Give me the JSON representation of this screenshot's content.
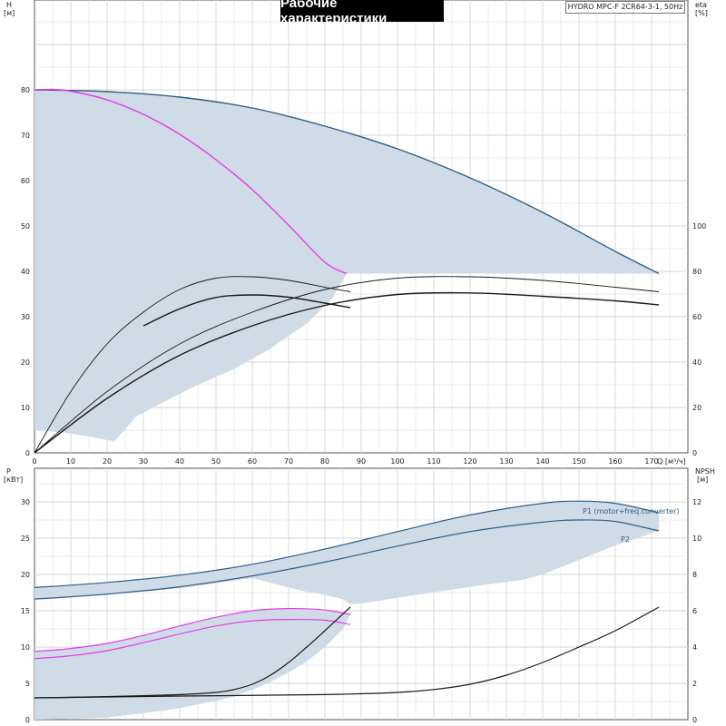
{
  "header": {
    "title": "Рабочие характеристики",
    "model": "HYDRO MPC-F 2CR64-3-1, 50Hz"
  },
  "colors": {
    "band_fill": "#cfdbe6",
    "curve_blue": "#2e5f8a",
    "curve_magenta": "#e63ce6",
    "curve_black": "#1a1a1a",
    "grid": "#d6d6d6"
  },
  "chart_data": [
    {
      "type": "line",
      "panel": "top",
      "y_left_label": "H",
      "y_left_unit": "[м]",
      "y_right_label": "eta",
      "y_right_unit": "[%]",
      "x_label": "Q [м³/ч]",
      "x_ticks": [
        0,
        10,
        20,
        30,
        40,
        50,
        60,
        70,
        80,
        90,
        100,
        110,
        120,
        130,
        140,
        150,
        160,
        170
      ],
      "y_left_ticks": [
        0,
        10,
        20,
        30,
        40,
        50,
        60,
        70,
        80
      ],
      "y_right_ticks": [
        0,
        20,
        40,
        60,
        80,
        100
      ],
      "xlim": [
        0,
        180
      ],
      "ylim": [
        0,
        90
      ],
      "eta_ylim": [
        0,
        180
      ],
      "series": [
        {
          "role": "h-max",
          "color": "blue",
          "axis": "left",
          "x": [
            0,
            20,
            40,
            60,
            80,
            100,
            120,
            140,
            160,
            172
          ],
          "y": [
            80,
            79.6,
            78.4,
            76.0,
            72.0,
            67.0,
            60.6,
            53.0,
            44.4,
            39.5
          ]
        },
        {
          "role": "h-single",
          "color": "magenta",
          "axis": "left",
          "x": [
            0,
            5,
            10,
            20,
            30,
            40,
            50,
            60,
            70,
            80,
            86
          ],
          "y": [
            80,
            80.1,
            79.7,
            77.8,
            74.6,
            70.2,
            64.6,
            58.0,
            50.2,
            42.0,
            39.5
          ]
        },
        {
          "role": "eta-one-pump-1",
          "color": "black",
          "axis": "right",
          "thin": true,
          "x": [
            0,
            10,
            20,
            30,
            40,
            50,
            60,
            70,
            80,
            87
          ],
          "y": [
            0,
            27,
            48,
            62,
            72,
            77,
            77.6,
            76,
            73,
            71
          ]
        },
        {
          "role": "eta-one-pump-2",
          "color": "black",
          "axis": "right",
          "x": [
            30,
            40,
            50,
            60,
            70,
            80,
            87
          ],
          "y": [
            56,
            63.5,
            68.5,
            69.6,
            68.6,
            66,
            64
          ]
        },
        {
          "role": "eta-two-pumps-1",
          "color": "black",
          "axis": "right",
          "thin": true,
          "x": [
            0,
            20,
            40,
            60,
            80,
            100,
            120,
            140,
            160,
            172
          ],
          "y": [
            0,
            27,
            48,
            62,
            72,
            77,
            77.6,
            76,
            73,
            71
          ]
        },
        {
          "role": "eta-two-pumps-2",
          "color": "black",
          "axis": "right",
          "x": [
            0,
            20,
            40,
            60,
            80,
            100,
            120,
            140,
            160,
            172
          ],
          "y": [
            0,
            24,
            43,
            56,
            65,
            69.8,
            70.5,
            69,
            67,
            65.2
          ]
        }
      ],
      "band": {
        "upper_x": [
          0,
          20,
          40,
          60,
          80,
          100,
          120,
          140,
          160,
          172
        ],
        "upper_y": [
          80,
          79.6,
          78.4,
          76.0,
          72.0,
          67.0,
          60.6,
          53.0,
          44.4,
          39.5
        ],
        "lower_x": [
          172,
          150,
          120,
          90,
          86,
          82,
          75,
          65,
          55,
          45,
          35,
          28,
          22,
          15,
          8,
          0
        ],
        "lower_y": [
          39.5,
          39.5,
          39.5,
          39.5,
          39.5,
          34,
          28.5,
          23,
          18.5,
          15,
          11,
          8,
          2.5,
          3.6,
          4.5,
          5
        ]
      }
    },
    {
      "type": "line",
      "panel": "bottom",
      "y_left_label": "P",
      "y_left_unit": "[кВт]",
      "y_right_label": "NPSH",
      "y_right_unit": "[м]",
      "y_left_ticks": [
        0,
        5,
        10,
        15,
        20,
        25,
        30
      ],
      "y_right_ticks": [
        0,
        2,
        4,
        6,
        8,
        10,
        12
      ],
      "xlim": [
        0,
        180
      ],
      "ylim": [
        0,
        32.5
      ],
      "npsh_ylim": [
        0,
        13
      ],
      "series": [
        {
          "name": "P1 (motor+freq.converter)",
          "color": "blue",
          "axis": "left",
          "x": [
            0,
            20,
            40,
            60,
            80,
            100,
            120,
            140,
            150,
            160,
            172
          ],
          "y": [
            18.2,
            18.9,
            19.9,
            21.4,
            23.5,
            25.9,
            28.2,
            29.8,
            30.1,
            29.8,
            28.5
          ]
        },
        {
          "name": "P2",
          "color": "blue",
          "axis": "left",
          "x": [
            0,
            20,
            40,
            60,
            80,
            100,
            120,
            140,
            150,
            160,
            172
          ],
          "y": [
            16.6,
            17.3,
            18.3,
            19.8,
            21.7,
            23.9,
            25.9,
            27.2,
            27.5,
            27.3,
            26.0
          ]
        },
        {
          "role": "p1-single",
          "color": "magenta",
          "axis": "left",
          "x": [
            0,
            10,
            20,
            30,
            40,
            50,
            60,
            70,
            80,
            87
          ],
          "y": [
            9.4,
            9.8,
            10.5,
            11.6,
            12.9,
            14.1,
            15.0,
            15.3,
            15.1,
            14.5
          ]
        },
        {
          "role": "p2-single",
          "color": "magenta",
          "axis": "left",
          "x": [
            0,
            10,
            20,
            30,
            40,
            50,
            60,
            70,
            80,
            87
          ],
          "y": [
            8.4,
            8.8,
            9.5,
            10.6,
            11.8,
            12.9,
            13.6,
            13.8,
            13.7,
            13.1
          ]
        },
        {
          "role": "npsh-single",
          "color": "black",
          "axis": "right",
          "x": [
            0,
            10,
            20,
            30,
            40,
            50,
            55,
            60,
            65,
            70,
            75,
            80,
            87
          ],
          "y": [
            1.2,
            1.23,
            1.27,
            1.32,
            1.38,
            1.5,
            1.66,
            1.95,
            2.45,
            3.15,
            4.0,
            4.9,
            6.2
          ]
        },
        {
          "role": "npsh-parallel",
          "color": "black",
          "axis": "right",
          "x": [
            0,
            40,
            80,
            100,
            110,
            120,
            130,
            140,
            150,
            160,
            172
          ],
          "y": [
            1.2,
            1.3,
            1.38,
            1.5,
            1.66,
            1.95,
            2.45,
            3.15,
            4.0,
            4.9,
            6.2
          ]
        }
      ],
      "bands": [
        {
          "upper_x": [
            0,
            20,
            40,
            60,
            80,
            100,
            120,
            140,
            150,
            160,
            172
          ],
          "upper_y": [
            18.2,
            18.9,
            19.9,
            21.4,
            23.5,
            25.9,
            28.2,
            29.8,
            30.1,
            29.8,
            28.5
          ],
          "lower_x": [
            172,
            160,
            150,
            140,
            135,
            120,
            100,
            90,
            87,
            85,
            80,
            75,
            70,
            60,
            40,
            20,
            0
          ],
          "lower_y": [
            26.0,
            24,
            22,
            20,
            19.3,
            18.3,
            16.8,
            16.0,
            15.9,
            16.6,
            17.2,
            17.6,
            18.2,
            19.5,
            18.1,
            17.2,
            16.6
          ]
        },
        {
          "upper_x": [
            0,
            10,
            20,
            30,
            40,
            50,
            60,
            70,
            80,
            87
          ],
          "upper_y": [
            9.4,
            9.8,
            10.5,
            11.6,
            12.9,
            14.1,
            15.0,
            15.3,
            15.1,
            14.5
          ],
          "lower_x": [
            87,
            85,
            80,
            75,
            70,
            65,
            60,
            55,
            50,
            45,
            40,
            35,
            30,
            25,
            20,
            10,
            0
          ],
          "lower_y": [
            14.5,
            12.5,
            10.0,
            8.0,
            6.5,
            5.2,
            4.1,
            3.2,
            2.6,
            2.1,
            1.6,
            1.2,
            0.9,
            0.6,
            0.3,
            0.1,
            0
          ]
        }
      ]
    }
  ]
}
